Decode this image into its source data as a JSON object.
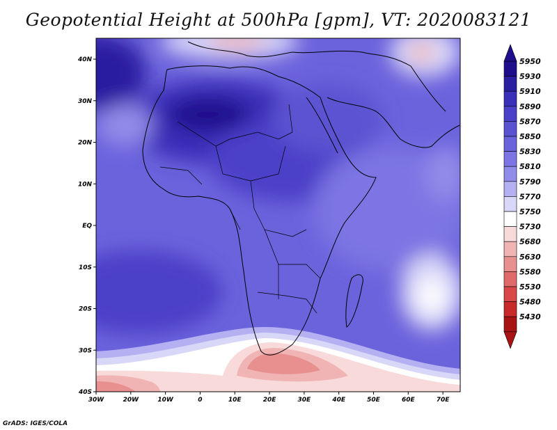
{
  "title": "Geopotential Height at 500hPa [gpm], VT: 2020083121",
  "footer": "GrADS: IGES/COLA",
  "map": {
    "lon_ticks": [
      "30W",
      "20W",
      "10W",
      "0",
      "10E",
      "20E",
      "30E",
      "40E",
      "50E",
      "60E",
      "70E"
    ],
    "lat_ticks": [
      "40N",
      "30N",
      "20N",
      "10N",
      "EQ",
      "10S",
      "20S",
      "30S",
      "40S"
    ]
  },
  "colorbar": {
    "levels": [
      "5950",
      "5930",
      "5910",
      "5890",
      "5870",
      "5850",
      "5830",
      "5810",
      "5790",
      "5770",
      "5750",
      "5730",
      "5680",
      "5630",
      "5580",
      "5530",
      "5480",
      "5430"
    ],
    "colors": [
      "#1e0e8c",
      "#2a1fa0",
      "#3a2fb8",
      "#4b40c8",
      "#5b52d2",
      "#6b63dc",
      "#7c75e3",
      "#918be9",
      "#b4b0f1",
      "#d9d7f8",
      "#ffffff",
      "#f8dada",
      "#f0b4b4",
      "#e89090",
      "#e06a6a",
      "#d84848",
      "#c82a2a",
      "#a81414"
    ]
  }
}
